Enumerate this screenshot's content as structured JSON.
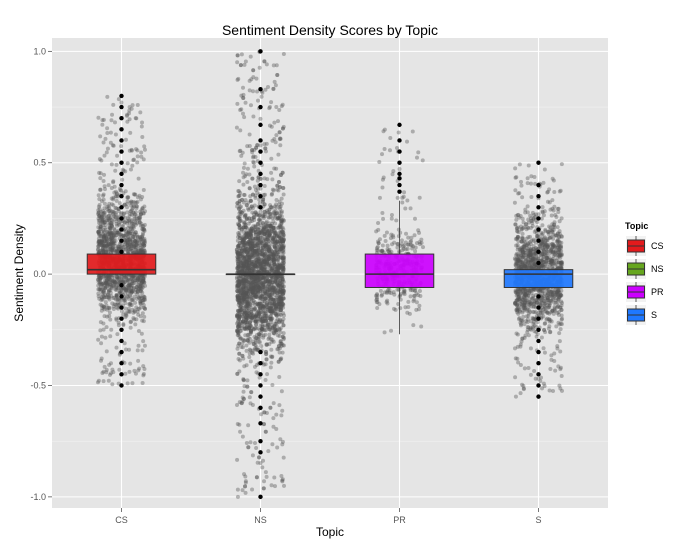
{
  "chart_data": {
    "type": "boxplot",
    "title": "Sentiment Density Scores by Topic",
    "xlabel": "Topic",
    "ylabel": "Sentiment Density",
    "categories": [
      "CS",
      "NS",
      "PR",
      "S"
    ],
    "ylim": [
      -1.05,
      1.06
    ],
    "yticks": [
      -1.0,
      -0.5,
      0.0,
      0.5,
      1.0
    ],
    "ytick_labels": [
      "-1.0",
      "-0.5",
      "0.0",
      "0.5",
      "1.0"
    ],
    "grid": true,
    "legend": {
      "title": "Topic",
      "position": "right",
      "entries": [
        "CS",
        "NS",
        "PR",
        "S"
      ]
    },
    "boxes": [
      {
        "category": "CS",
        "q1": 0.0,
        "median": 0.02,
        "q3": 0.09,
        "whisker_low": 0.0,
        "whisker_high": 0.09,
        "color": "#e31a1c",
        "outliers": [
          0.8,
          0.75,
          0.7,
          0.65,
          0.6,
          0.55,
          0.5,
          0.45,
          0.4,
          0.35,
          0.3,
          0.25,
          0.2,
          0.15,
          0.1,
          -0.05,
          -0.1,
          -0.15,
          -0.2,
          -0.25,
          -0.3,
          -0.35,
          -0.4,
          -0.45,
          -0.5
        ]
      },
      {
        "category": "NS",
        "q1": 0.0,
        "median": 0.0,
        "q3": 0.0,
        "whisker_low": 0.0,
        "whisker_high": 0.0,
        "color": "#66a61e",
        "outliers": [
          1.0,
          0.83,
          0.75,
          0.67,
          0.6,
          0.55,
          0.5,
          0.45,
          0.4,
          0.35,
          0.3,
          -0.35,
          -0.4,
          -0.45,
          -0.5,
          -0.55,
          -0.6,
          -0.67,
          -0.75,
          -0.8,
          -1.0
        ]
      },
      {
        "category": "PR",
        "q1": -0.06,
        "median": 0.0,
        "q3": 0.09,
        "whisker_low": -0.27,
        "whisker_high": 0.33,
        "color": "#cc00ff",
        "outliers": [
          0.67,
          0.6,
          0.55,
          0.5,
          0.45,
          0.43,
          0.4,
          0.37
        ]
      },
      {
        "category": "S",
        "q1": -0.06,
        "median": 0.0,
        "q3": 0.02,
        "whisker_low": -0.06,
        "whisker_high": 0.02,
        "color": "#1f78ff",
        "outliers": [
          0.5,
          0.4,
          0.35,
          0.3,
          0.25,
          0.2,
          0.15,
          0.1,
          0.05,
          -0.1,
          -0.15,
          -0.2,
          -0.25,
          -0.3,
          -0.35,
          -0.4,
          -0.45,
          -0.5,
          -0.55
        ]
      }
    ],
    "jitter": [
      {
        "category": "CS",
        "min": -0.5,
        "max": 0.8,
        "dense_min": -0.3,
        "dense_max": 0.45,
        "count": 1500,
        "halfwidth": 0.17
      },
      {
        "category": "NS",
        "min": -1.0,
        "max": 1.0,
        "dense_min": -0.5,
        "dense_max": 0.5,
        "count": 2600,
        "halfwidth": 0.17
      },
      {
        "category": "PR",
        "min": -0.27,
        "max": 0.67,
        "dense_min": -0.25,
        "dense_max": 0.3,
        "count": 350,
        "halfwidth": 0.17
      },
      {
        "category": "S",
        "min": -0.55,
        "max": 0.5,
        "dense_min": -0.35,
        "dense_max": 0.35,
        "count": 1400,
        "halfwidth": 0.17
      }
    ],
    "colors": {
      "panel": "#e5e5e5",
      "grid_major": "#ffffff",
      "grid_minor": "#f2f2f2",
      "jitter": "#555555",
      "outlier": "#000000"
    }
  }
}
